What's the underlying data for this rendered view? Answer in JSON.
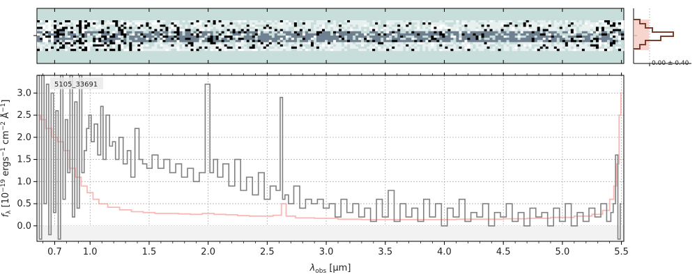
{
  "chart_data": [
    {
      "type": "heatmap",
      "panel": "2d-spectrum",
      "description_visible": "2D spectrum strip",
      "colormap": [
        "#000000",
        "#3a4660",
        "#c9dedb",
        "#ffffff"
      ],
      "background_color": "#c7dedb"
    },
    {
      "type": "line",
      "panel": "profile-histogram",
      "annotation": "0.00 ± 0.40",
      "colors": {
        "profile": "#7a3e2e",
        "fill": "#f6c9c2"
      }
    },
    {
      "type": "line",
      "panel": "1d-spectrum",
      "object_label": "5105_33691",
      "xlabel": "λobs [μm]",
      "ylabel_parts": {
        "f": "f",
        "sub": "λ",
        "body": " [10",
        "exp1": "−19",
        "mid": " ergs",
        "exp2": "−1",
        "mid2": "cm",
        "exp3": "−2",
        "end": "Å",
        "exp4": "−1",
        "close": "]"
      },
      "x_ticks": [
        "0.7",
        "1.0",
        "1.5",
        "2.0",
        "2.5",
        "3.0",
        "3.5",
        "4.0",
        "4.5",
        "5.0",
        "5.5"
      ],
      "y_ticks": [
        "0.0",
        "0.5",
        "1.0",
        "1.5",
        "2.0",
        "2.5",
        "3.0"
      ],
      "ylim": [
        -0.35,
        3.4
      ],
      "xlim": [
        0.55,
        5.52
      ],
      "grid": true,
      "series": [
        {
          "role": "flux",
          "color": "#808080",
          "x": [
            0.56,
            0.58,
            0.6,
            0.62,
            0.64,
            0.66,
            0.68,
            0.7,
            0.72,
            0.74,
            0.76,
            0.78,
            0.8,
            0.82,
            0.84,
            0.86,
            0.88,
            0.9,
            0.92,
            0.94,
            0.96,
            0.98,
            1.0,
            1.02,
            1.05,
            1.08,
            1.1,
            1.12,
            1.15,
            1.18,
            1.2,
            1.23,
            1.26,
            1.3,
            1.33,
            1.36,
            1.4,
            1.43,
            1.46,
            1.5,
            1.55,
            1.6,
            1.65,
            1.7,
            1.75,
            1.8,
            1.85,
            1.9,
            1.95,
            2.0,
            2.03,
            2.06,
            2.1,
            2.15,
            2.2,
            2.25,
            2.3,
            2.35,
            2.4,
            2.45,
            2.5,
            2.55,
            2.6,
            2.62,
            2.64,
            2.66,
            2.7,
            2.75,
            2.8,
            2.85,
            2.9,
            2.95,
            3.0,
            3.05,
            3.1,
            3.15,
            3.2,
            3.25,
            3.3,
            3.35,
            3.4,
            3.45,
            3.5,
            3.55,
            3.6,
            3.65,
            3.7,
            3.75,
            3.8,
            3.85,
            3.9,
            3.95,
            4.0,
            4.05,
            4.1,
            4.15,
            4.2,
            4.25,
            4.3,
            4.35,
            4.4,
            4.45,
            4.5,
            4.55,
            4.6,
            4.65,
            4.7,
            4.75,
            4.8,
            4.85,
            4.9,
            4.95,
            5.0,
            5.05,
            5.1,
            5.15,
            5.2,
            5.25,
            5.3,
            5.35,
            5.4,
            5.42,
            5.44,
            5.46,
            5.48,
            5.5
          ],
          "values": [
            3.4,
            -0.3,
            3.4,
            0.5,
            3.2,
            -0.2,
            3.0,
            0.3,
            2.6,
            -0.3,
            3.4,
            0.6,
            2.4,
            1.2,
            3.4,
            0.2,
            2.8,
            0.4,
            3.4,
            1.2,
            1.7,
            2.2,
            2.5,
            1.9,
            2.3,
            1.6,
            2.7,
            1.5,
            2.5,
            1.8,
            1.9,
            1.5,
            2.0,
            1.4,
            1.7,
            1.1,
            2.2,
            1.5,
            1.4,
            1.3,
            1.6,
            1.3,
            1.5,
            1.2,
            1.4,
            1.1,
            1.3,
            1.0,
            1.2,
            3.2,
            1.2,
            1.5,
            1.1,
            1.4,
            0.9,
            1.5,
            0.8,
            1.1,
            0.7,
            1.2,
            0.6,
            0.9,
            0.8,
            2.9,
            0.6,
            0.7,
            0.5,
            0.9,
            0.4,
            0.6,
            0.5,
            0.6,
            0.4,
            0.5,
            0.2,
            0.6,
            0.3,
            0.5,
            0.2,
            0.4,
            0.1,
            0.6,
            0.2,
            0.8,
            0.1,
            0.5,
            0.2,
            0.4,
            0.1,
            0.6,
            0.2,
            0.5,
            0.0,
            0.4,
            0.2,
            0.6,
            0.1,
            0.3,
            0.2,
            0.5,
            0.0,
            0.3,
            0.2,
            0.5,
            0.1,
            0.3,
            0.0,
            0.4,
            0.2,
            0.3,
            0.0,
            0.4,
            0.1,
            0.5,
            0.0,
            0.3,
            0.1,
            0.4,
            0.2,
            0.5,
            0.1,
            0.3,
            0.5,
            1.6,
            -0.3,
            0.5
          ]
        },
        {
          "role": "error",
          "color": "#f6a8a4",
          "x": [
            0.56,
            0.6,
            0.65,
            0.7,
            0.75,
            0.8,
            0.85,
            0.9,
            0.95,
            1.0,
            1.05,
            1.1,
            1.2,
            1.3,
            1.4,
            1.5,
            1.6,
            1.7,
            1.8,
            1.9,
            2.0,
            2.1,
            2.2,
            2.3,
            2.4,
            2.5,
            2.6,
            2.64,
            2.68,
            2.8,
            3.0,
            3.2,
            3.4,
            3.6,
            3.8,
            4.0,
            4.2,
            4.4,
            4.6,
            4.8,
            5.0,
            5.2,
            5.3,
            5.38,
            5.42,
            5.45,
            5.47,
            5.49,
            5.5
          ],
          "values": [
            2.5,
            2.4,
            2.2,
            2.0,
            1.9,
            1.7,
            1.3,
            1.1,
            0.9,
            0.75,
            0.6,
            0.5,
            0.42,
            0.36,
            0.32,
            0.3,
            0.28,
            0.28,
            0.27,
            0.26,
            0.28,
            0.26,
            0.25,
            0.23,
            0.22,
            0.22,
            0.24,
            0.5,
            0.22,
            0.18,
            0.17,
            0.15,
            0.14,
            0.14,
            0.14,
            0.14,
            0.15,
            0.15,
            0.16,
            0.17,
            0.19,
            0.22,
            0.26,
            0.35,
            0.6,
            0.9,
            1.4,
            2.5,
            3.0
          ]
        }
      ]
    }
  ]
}
